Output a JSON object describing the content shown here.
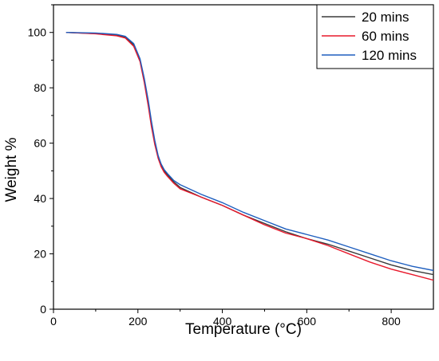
{
  "chart_data": {
    "type": "line",
    "title": "",
    "xlabel": "Temperature (°C)",
    "ylabel": "Weight %",
    "xlim": [
      0,
      900
    ],
    "ylim": [
      0,
      110
    ],
    "x_ticks": [
      0,
      200,
      400,
      600,
      800
    ],
    "y_ticks": [
      0,
      20,
      40,
      60,
      80,
      100
    ],
    "grid": false,
    "legend_position": "top-right",
    "series": [
      {
        "name": "20 mins",
        "color": "#3a3a3a",
        "x": [
          30,
          100,
          150,
          170,
          190,
          205,
          215,
          225,
          232,
          240,
          248,
          255,
          262,
          270,
          285,
          300,
          350,
          400,
          450,
          500,
          550,
          600,
          650,
          700,
          750,
          800,
          850,
          900
        ],
        "y": [
          100,
          99.6,
          99.0,
          98.3,
          95.5,
          90,
          83,
          74,
          67,
          60,
          55,
          52,
          50,
          48.5,
          46,
          44,
          40.5,
          37.5,
          34,
          31,
          28,
          25.5,
          23.5,
          21,
          18.5,
          16,
          14,
          12.5
        ]
      },
      {
        "name": "60 mins",
        "color": "#e8192c",
        "x": [
          30,
          100,
          150,
          170,
          190,
          205,
          215,
          225,
          232,
          240,
          248,
          255,
          262,
          270,
          285,
          300,
          350,
          400,
          450,
          500,
          550,
          600,
          650,
          700,
          750,
          800,
          850,
          900
        ],
        "y": [
          100,
          99.5,
          98.8,
          98.0,
          95,
          89.5,
          82,
          73,
          66,
          59.5,
          54.5,
          51.5,
          49.5,
          48,
          45.5,
          43.5,
          40.5,
          37.5,
          34,
          30.5,
          27.5,
          25.5,
          23,
          20,
          17,
          14.5,
          12.5,
          10.5
        ]
      },
      {
        "name": "120 mins",
        "color": "#1f5fbf",
        "x": [
          30,
          100,
          150,
          170,
          190,
          205,
          215,
          225,
          232,
          240,
          248,
          255,
          262,
          270,
          285,
          300,
          350,
          400,
          450,
          500,
          550,
          600,
          650,
          700,
          750,
          800,
          850,
          900
        ],
        "y": [
          100,
          99.8,
          99.3,
          98.6,
          96,
          90.5,
          83.5,
          75,
          68,
          61,
          55.5,
          52.5,
          50.5,
          49,
          46.5,
          45,
          41.5,
          38.5,
          35,
          32,
          29,
          27,
          25,
          22.5,
          20,
          17.5,
          15.5,
          14
        ]
      }
    ]
  }
}
